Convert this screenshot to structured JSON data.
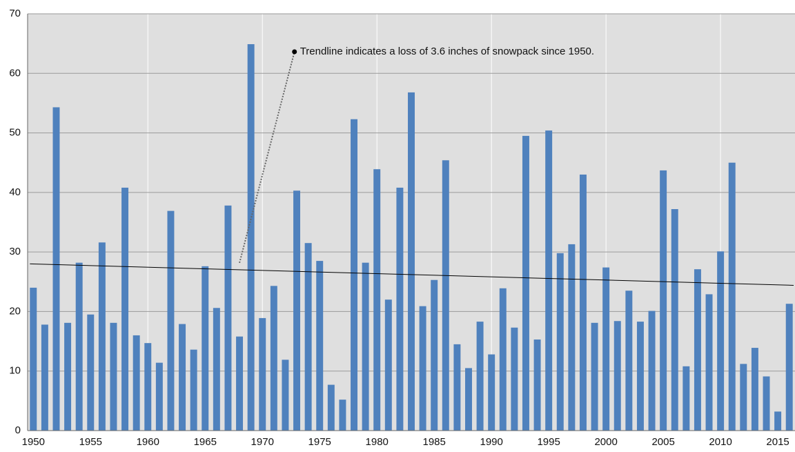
{
  "chart_data": {
    "type": "bar",
    "categories": [
      "1950",
      null,
      null,
      null,
      null,
      "1955",
      null,
      null,
      null,
      null,
      "1960",
      null,
      null,
      null,
      null,
      "1965",
      null,
      null,
      null,
      null,
      "1970",
      null,
      null,
      null,
      null,
      "1975",
      null,
      null,
      null,
      null,
      "1980",
      null,
      null,
      null,
      null,
      "1985",
      null,
      null,
      null,
      null,
      "1990",
      null,
      null,
      null,
      null,
      "1995",
      null,
      null,
      null,
      null,
      "2000",
      null,
      null,
      null,
      null,
      "2005",
      null,
      null,
      null,
      null,
      "2010",
      null,
      null,
      null,
      null,
      "2015",
      null
    ],
    "values": [
      24,
      17.8,
      54.3,
      18.1,
      28.2,
      19.5,
      31.6,
      18.1,
      40.8,
      16.0,
      14.7,
      11.4,
      36.9,
      17.9,
      13.6,
      27.6,
      20.6,
      37.8,
      15.8,
      64.9,
      18.9,
      24.3,
      11.9,
      40.3,
      31.5,
      28.5,
      7.7,
      5.2,
      52.3,
      28.2,
      43.9,
      22.0,
      40.8,
      56.8,
      20.9,
      25.3,
      45.4,
      14.5,
      10.5,
      18.3,
      12.8,
      23.9,
      17.3,
      49.5,
      15.3,
      50.4,
      29.8,
      31.3,
      43.0,
      18.1,
      27.4,
      18.4,
      23.5,
      18.3,
      20.1,
      43.7,
      37.2,
      10.8,
      27.1,
      22.9,
      30.1,
      45.0,
      11.2,
      13.9,
      9.1,
      3.2,
      21.3
    ],
    "color": "#4f81bd",
    "ylim": [
      0,
      70
    ],
    "yticks": [
      0,
      10,
      20,
      30,
      40,
      50,
      60,
      70
    ],
    "grid": true,
    "trendline": {
      "start": 28,
      "end": 24.4
    },
    "annotation": "Trendline indicates a loss of 3.6 inches of snowpack since 1950."
  }
}
